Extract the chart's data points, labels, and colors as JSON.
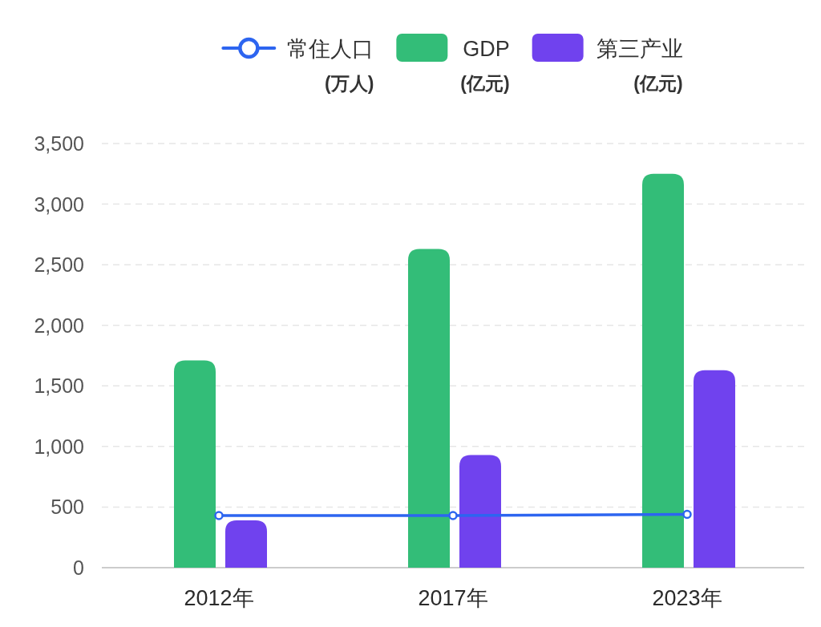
{
  "chart_data": {
    "type": "bar",
    "categories": [
      "2012年",
      "2017年",
      "2023年"
    ],
    "series": [
      {
        "name": "常住人口\n(万人)",
        "type": "line",
        "color": "#2d65f0",
        "values": [
          430,
          430,
          440
        ]
      },
      {
        "name": "GDP\n(亿元)",
        "color": "#33bd78",
        "values": [
          1710,
          2630,
          3250
        ]
      },
      {
        "name": "第三产业\n(亿元)",
        "color": "#7042ee",
        "values": [
          390,
          930,
          1630
        ]
      }
    ],
    "ylim": [
      0,
      3500
    ],
    "yticks": [
      0,
      500,
      {
        "value": 1000,
        "label": "1,000"
      },
      {
        "value": 1500,
        "label": "1,500"
      },
      {
        "value": 2000,
        "label": "2,000"
      },
      {
        "value": 2500,
        "label": "2,500"
      },
      {
        "value": 3000,
        "label": "3,000"
      },
      {
        "value": 3500,
        "label": "3,500"
      }
    ],
    "grid": "y",
    "legend": "top",
    "marker": "circle"
  }
}
